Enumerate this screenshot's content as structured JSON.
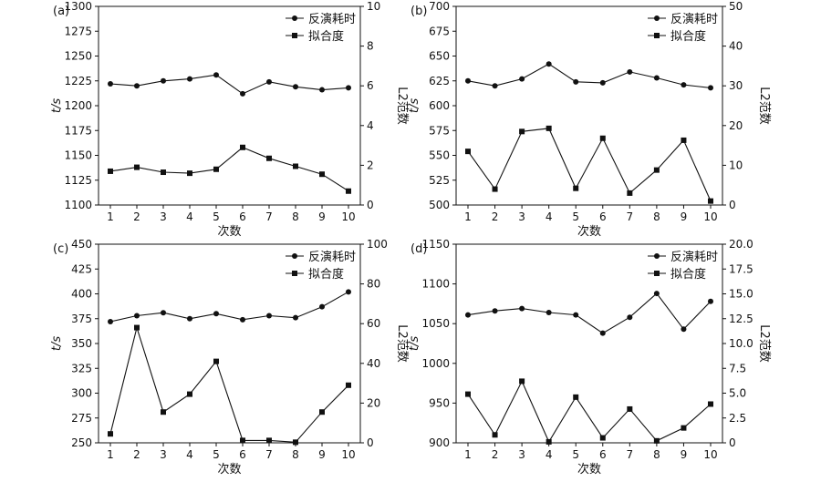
{
  "chart_data": [
    {
      "type": "line",
      "panel_label": "(a)",
      "categories": [
        "1",
        "2",
        "3",
        "4",
        "5",
        "6",
        "7",
        "8",
        "9",
        "10"
      ],
      "xlabel": "次数",
      "ylabel": "t/s",
      "y2label": "L2范数",
      "ylim": [
        1100,
        1300
      ],
      "yticks": [
        "1100",
        "1125",
        "1150",
        "1175",
        "1200",
        "1225",
        "1250",
        "1275",
        "1300"
      ],
      "y2lim": [
        0,
        10
      ],
      "y2ticks": [
        "0",
        "2",
        "4",
        "6",
        "8",
        "10"
      ],
      "legend_position": "top-right",
      "series": [
        {
          "name": "反演耗时",
          "axis": "left",
          "marker": "circle",
          "values": [
            1222,
            1220,
            1225,
            1227,
            1231,
            1212,
            1224,
            1219,
            1216,
            1218
          ]
        },
        {
          "name": "拟合度",
          "axis": "right",
          "marker": "square",
          "values": [
            1.7,
            1.9,
            1.65,
            1.6,
            1.8,
            2.9,
            2.35,
            1.95,
            1.55,
            0.7
          ]
        }
      ]
    },
    {
      "type": "line",
      "panel_label": "(b)",
      "categories": [
        "1",
        "2",
        "3",
        "4",
        "5",
        "6",
        "7",
        "8",
        "9",
        "10"
      ],
      "xlabel": "次数",
      "ylabel": "t/s",
      "y2label": "L2范数",
      "ylim": [
        500,
        700
      ],
      "yticks": [
        "500",
        "525",
        "550",
        "575",
        "600",
        "625",
        "650",
        "675",
        "700"
      ],
      "y2lim": [
        0,
        50
      ],
      "y2ticks": [
        "0",
        "10",
        "20",
        "30",
        "40",
        "50"
      ],
      "legend_position": "top-right",
      "series": [
        {
          "name": "反演耗时",
          "axis": "left",
          "marker": "circle",
          "values": [
            625,
            620,
            627,
            642,
            624,
            623,
            634,
            628,
            621,
            618
          ]
        },
        {
          "name": "拟合度",
          "axis": "right",
          "marker": "square",
          "values": [
            13.5,
            4,
            18.5,
            19.3,
            4.2,
            16.8,
            3,
            8.8,
            16.3,
            1
          ]
        }
      ]
    },
    {
      "type": "line",
      "panel_label": "(c)",
      "categories": [
        "1",
        "2",
        "3",
        "4",
        "5",
        "6",
        "7",
        "8",
        "9",
        "10"
      ],
      "xlabel": "次数",
      "ylabel": "t/s",
      "y2label": "L2范数",
      "ylim": [
        250,
        450
      ],
      "yticks": [
        "250",
        "275",
        "300",
        "325",
        "350",
        "375",
        "400",
        "425",
        "450"
      ],
      "y2lim": [
        0,
        100
      ],
      "y2ticks": [
        "0",
        "20",
        "40",
        "60",
        "80",
        "100"
      ],
      "legend_position": "top-right",
      "series": [
        {
          "name": "反演耗时",
          "axis": "left",
          "marker": "circle",
          "values": [
            372,
            378,
            381,
            375,
            380,
            374,
            378,
            376,
            387,
            402
          ]
        },
        {
          "name": "拟合度",
          "axis": "right",
          "marker": "square",
          "values": [
            4.5,
            58,
            15.5,
            24.5,
            41,
            1.2,
            1.2,
            0.3,
            15.5,
            29
          ]
        }
      ]
    },
    {
      "type": "line",
      "panel_label": "(d)",
      "categories": [
        "1",
        "2",
        "3",
        "4",
        "5",
        "6",
        "7",
        "8",
        "9",
        "10"
      ],
      "xlabel": "次数",
      "ylabel": "t/s",
      "y2label": "L2范数",
      "ylim": [
        900,
        1150
      ],
      "yticks": [
        "900",
        "950",
        "1000",
        "1050",
        "1100",
        "1150"
      ],
      "y2lim": [
        0,
        20
      ],
      "y2ticks": [
        "0",
        "2.5",
        "5.0",
        "7.5",
        "10.0",
        "12.5",
        "15.0",
        "17.5",
        "20.0"
      ],
      "legend_position": "top-right",
      "series": [
        {
          "name": "反演耗时",
          "axis": "left",
          "marker": "circle",
          "values": [
            1061,
            1066,
            1069,
            1064,
            1061,
            1038,
            1058,
            1088,
            1043,
            1078
          ]
        },
        {
          "name": "拟合度",
          "axis": "right",
          "marker": "square",
          "values": [
            4.9,
            0.8,
            6.2,
            0.1,
            4.6,
            0.5,
            3.4,
            0.2,
            1.5,
            3.9
          ]
        }
      ]
    }
  ]
}
